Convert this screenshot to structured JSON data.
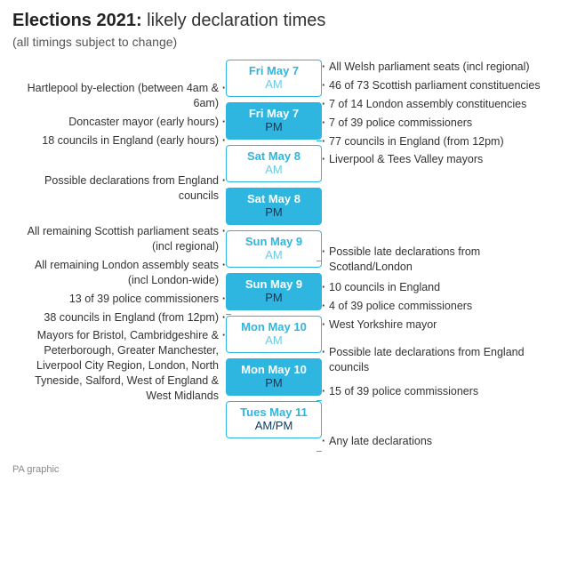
{
  "title_bold": "Elections 2021:",
  "title_rest": " likely declaration times",
  "subtitle": "(all timings subject to change)",
  "credit": "PA graphic",
  "colors": {
    "accent": "#2fb6e0",
    "pm_text": "#0b3a5a",
    "body": "#333333"
  },
  "slots": [
    {
      "date": "Fri May 7",
      "period": "AM",
      "style": "am",
      "left": [
        "Hartlepool by-election (between 4am & 6am)",
        "Doncaster mayor (early hours)",
        "18 councils in England (early hours)"
      ],
      "right": [
        "All Welsh parliament seats (incl regional)",
        "46 of 73 Scottish parliament constituencies",
        "7 of 14 London assembly constituencies",
        "7 of 39 police commissioners",
        "77 councils in England (from 12pm)",
        "Liverpool & Tees Valley mayors"
      ]
    },
    {
      "date": "Fri May 7",
      "period": "PM",
      "style": "pm",
      "left": [],
      "right": []
    },
    {
      "date": "Sat May 8",
      "period": "AM",
      "style": "am",
      "left": [
        "Possible declarations from England councils"
      ],
      "right": []
    },
    {
      "date": "Sat May 8",
      "period": "PM",
      "style": "pm",
      "left": [
        "All remaining Scottish parliament seats (incl regional)",
        "All remaining London assembly seats (incl London-wide)",
        "13 of 39 police commissioners",
        "38 councils in England (from 12pm)",
        "Mayors for Bristol, Cambridgeshire & Peterborough, Greater Manchester, Liverpool City Region, London, North Tyneside, Salford, West of England & West Midlands"
      ],
      "right": []
    },
    {
      "date": "Sun May 9",
      "period": "AM",
      "style": "am",
      "left": [],
      "right": [
        "Possible late declarations from Scotland/London"
      ]
    },
    {
      "date": "Sun May 9",
      "period": "PM",
      "style": "pm",
      "left": [],
      "right": [
        "10 councils in England",
        "4 of 39 police commissioners",
        "West Yorkshire mayor"
      ]
    },
    {
      "date": "Mon May 10",
      "period": "AM",
      "style": "am",
      "left": [],
      "right": [
        "Possible late declarations from England councils"
      ]
    },
    {
      "date": "Mon May 10",
      "period": "PM",
      "style": "pm",
      "left": [],
      "right": [
        "15 of 39 police commissioners"
      ]
    },
    {
      "date": "Tues May 11",
      "period": "AM/PM",
      "style": "am ampm",
      "left": [],
      "right": [
        "Any late declarations"
      ]
    }
  ],
  "left_heights": [
    128,
    0,
    38,
    244,
    0,
    0,
    0,
    0,
    0
  ],
  "right_heights": [
    186,
    0,
    0,
    18,
    40,
    56,
    40,
    40,
    42
  ],
  "left_offsets": [
    0,
    0,
    0,
    0,
    0,
    0,
    0,
    0,
    0
  ],
  "right_offsets": [
    0,
    0,
    0,
    0,
    4,
    0,
    10,
    4,
    16
  ]
}
